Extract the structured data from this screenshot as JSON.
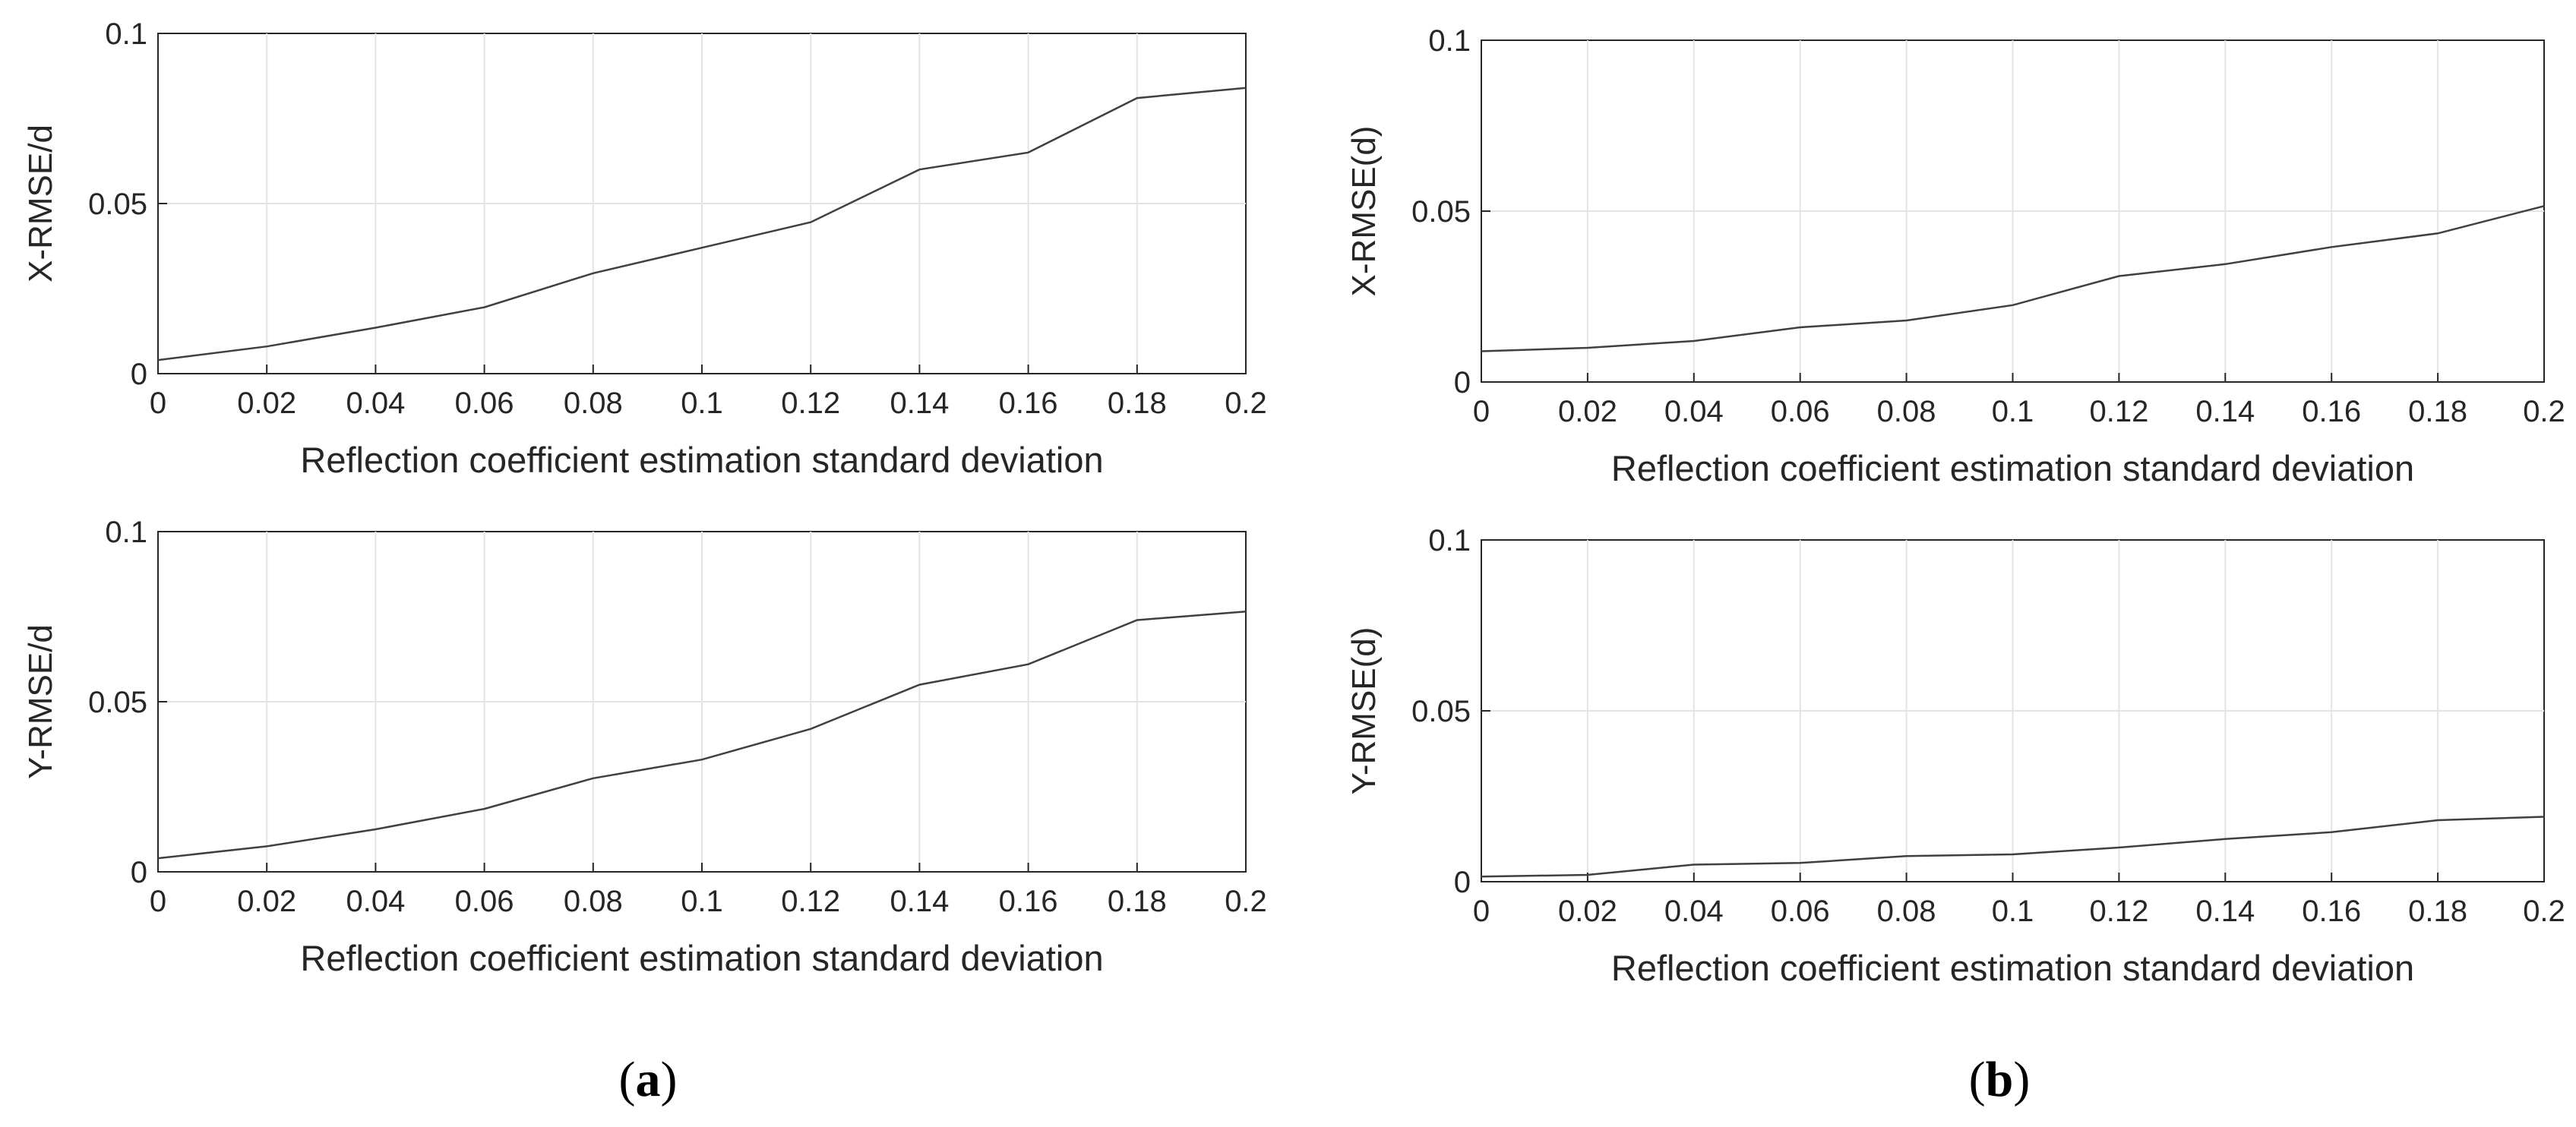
{
  "figure": {
    "captions": [
      {
        "open": "(",
        "letter": "a",
        "close": ")"
      },
      {
        "open": "(",
        "letter": "b",
        "close": ")"
      }
    ]
  },
  "chart_data": [
    {
      "id": "a-top",
      "type": "line",
      "xlabel": "Reflection coefficient estimation standard deviation",
      "ylabel": "X-RMSE/d",
      "xlim": [
        0,
        0.2
      ],
      "ylim": [
        0,
        0.1
      ],
      "xticks": [
        0,
        0.02,
        0.04,
        0.06,
        0.08,
        0.1,
        0.12,
        0.14,
        0.16,
        0.18,
        0.2
      ],
      "xtick_labels": [
        "0",
        "0.02",
        "0.04",
        "0.06",
        "0.08",
        "0.1",
        "0.12",
        "0.14",
        "0.16",
        "0.18",
        "0.2"
      ],
      "yticks": [
        0,
        0.05,
        0.1
      ],
      "ytick_labels": [
        "0",
        "0.05",
        "0.1"
      ],
      "grid": true,
      "x": [
        0,
        0.02,
        0.04,
        0.06,
        0.08,
        0.1,
        0.12,
        0.14,
        0.16,
        0.18,
        0.2
      ],
      "series": [
        {
          "name": "X-RMSE/d",
          "values": [
            0.004,
            0.008,
            0.0135,
            0.0195,
            0.0295,
            0.037,
            0.0445,
            0.06,
            0.065,
            0.081,
            0.084
          ]
        }
      ]
    },
    {
      "id": "a-bottom",
      "type": "line",
      "xlabel": "Reflection coefficient estimation standard deviation",
      "ylabel": "Y-RMSE/d",
      "xlim": [
        0,
        0.2
      ],
      "ylim": [
        0,
        0.1
      ],
      "xticks": [
        0,
        0.02,
        0.04,
        0.06,
        0.08,
        0.1,
        0.12,
        0.14,
        0.16,
        0.18,
        0.2
      ],
      "xtick_labels": [
        "0",
        "0.02",
        "0.04",
        "0.06",
        "0.08",
        "0.1",
        "0.12",
        "0.14",
        "0.16",
        "0.18",
        "0.2"
      ],
      "yticks": [
        0,
        0.05,
        0.1
      ],
      "ytick_labels": [
        "0",
        "0.05",
        "0.1"
      ],
      "grid": true,
      "x": [
        0,
        0.02,
        0.04,
        0.06,
        0.08,
        0.1,
        0.12,
        0.14,
        0.16,
        0.18,
        0.2
      ],
      "series": [
        {
          "name": "Y-RMSE/d",
          "values": [
            0.004,
            0.0075,
            0.0125,
            0.0185,
            0.0275,
            0.033,
            0.042,
            0.055,
            0.061,
            0.074,
            0.0765
          ]
        }
      ]
    },
    {
      "id": "b-top",
      "type": "line",
      "xlabel": "Reflection coefficient estimation standard deviation",
      "ylabel": "X-RMSE(d)",
      "xlim": [
        0,
        0.2
      ],
      "ylim": [
        0,
        0.1
      ],
      "xticks": [
        0,
        0.02,
        0.04,
        0.06,
        0.08,
        0.1,
        0.12,
        0.14,
        0.16,
        0.18,
        0.2
      ],
      "xtick_labels": [
        "0",
        "0.02",
        "0.04",
        "0.06",
        "0.08",
        "0.1",
        "0.12",
        "0.14",
        "0.16",
        "0.18",
        "0.2"
      ],
      "yticks": [
        0,
        0.05,
        0.1
      ],
      "ytick_labels": [
        "0",
        "0.05",
        "0.1"
      ],
      "grid": true,
      "x": [
        0,
        0.02,
        0.04,
        0.06,
        0.08,
        0.1,
        0.12,
        0.14,
        0.16,
        0.18,
        0.2
      ],
      "series": [
        {
          "name": "X-RMSE(d)",
          "values": [
            0.009,
            0.01,
            0.012,
            0.016,
            0.018,
            0.0225,
            0.031,
            0.0345,
            0.0395,
            0.0435,
            0.0515
          ]
        }
      ]
    },
    {
      "id": "b-bottom",
      "type": "line",
      "xlabel": "Reflection coefficient estimation standard deviation",
      "ylabel": "Y-RMSE(d)",
      "xlim": [
        0,
        0.2
      ],
      "ylim": [
        0,
        0.1
      ],
      "xticks": [
        0,
        0.02,
        0.04,
        0.06,
        0.08,
        0.1,
        0.12,
        0.14,
        0.16,
        0.18,
        0.2
      ],
      "xtick_labels": [
        "0",
        "0.02",
        "0.04",
        "0.06",
        "0.08",
        "0.1",
        "0.12",
        "0.14",
        "0.16",
        "0.18",
        "0.2"
      ],
      "yticks": [
        0,
        0.05,
        0.1
      ],
      "ytick_labels": [
        "0",
        "0.05",
        "0.1"
      ],
      "grid": true,
      "x": [
        0,
        0.02,
        0.04,
        0.06,
        0.08,
        0.1,
        0.12,
        0.14,
        0.16,
        0.18,
        0.2
      ],
      "series": [
        {
          "name": "Y-RMSE(d)",
          "values": [
            0.0015,
            0.002,
            0.005,
            0.0055,
            0.0075,
            0.008,
            0.01,
            0.0125,
            0.0145,
            0.018,
            0.019
          ]
        }
      ]
    }
  ]
}
